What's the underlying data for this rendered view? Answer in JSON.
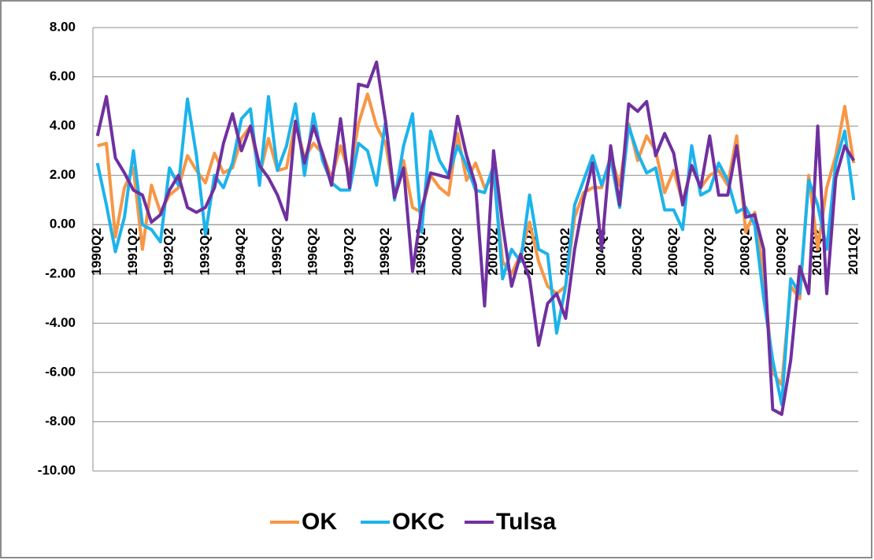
{
  "chart_data": {
    "type": "line",
    "categories": [
      "1990Q2",
      null,
      null,
      null,
      "1991Q2",
      null,
      null,
      null,
      "1992Q2",
      null,
      null,
      null,
      "1993Q2",
      null,
      null,
      null,
      "1994Q2",
      null,
      null,
      null,
      "1995Q2",
      null,
      null,
      null,
      "1996Q2",
      null,
      null,
      null,
      "1997Q2",
      null,
      null,
      null,
      "1998Q2",
      null,
      null,
      null,
      "1999Q2",
      null,
      null,
      null,
      "2000Q2",
      null,
      null,
      null,
      "2001Q2",
      null,
      null,
      null,
      "2002Q2",
      null,
      null,
      null,
      "2003Q2",
      null,
      null,
      null,
      "2004Q2",
      null,
      null,
      null,
      "2005Q2",
      null,
      null,
      null,
      "2006Q2",
      null,
      null,
      null,
      "2007Q2",
      null,
      null,
      null,
      "2008Q2",
      null,
      null,
      null,
      "2009Q2",
      null,
      null,
      null,
      "2010Q2",
      null,
      null,
      null,
      "2011Q2"
    ],
    "series": [
      {
        "name": "OK",
        "color": "#f79646",
        "values": [
          3.2,
          3.3,
          -0.5,
          1.5,
          2.3,
          -1.0,
          1.6,
          0.5,
          1.2,
          1.5,
          2.8,
          2.2,
          1.7,
          2.9,
          2.1,
          2.3,
          3.5,
          4.0,
          2.0,
          3.5,
          2.2,
          2.3,
          4.2,
          2.7,
          3.3,
          2.9,
          1.9,
          3.2,
          2.0,
          4.1,
          5.3,
          4.0,
          3.3,
          1.2,
          2.6,
          0.7,
          0.5,
          2.0,
          1.5,
          1.2,
          3.7,
          1.8,
          2.5,
          1.5,
          2.0,
          -1.5,
          -2.0,
          -1.2,
          0.1,
          -1.5,
          -2.5,
          -2.8,
          -2.5,
          0.3,
          1.3,
          1.5,
          1.5,
          2.8,
          1.6,
          4.1,
          2.6,
          3.6,
          3.0,
          1.3,
          2.2,
          0.9,
          2.4,
          1.5,
          2.0,
          2.2,
          1.6,
          3.6,
          -0.3,
          0.5,
          -2.0,
          -6.0,
          -6.5,
          -2.5,
          -3.0,
          2.0,
          -1.0,
          1.5,
          2.8,
          4.8,
          2.5
        ]
      },
      {
        "name": "OKC",
        "color": "#1cb3ec",
        "values": [
          2.5,
          0.8,
          -1.1,
          0.3,
          3.0,
          0.0,
          -0.2,
          -0.7,
          2.3,
          1.6,
          5.1,
          2.8,
          -0.4,
          2.0,
          1.5,
          2.5,
          4.3,
          4.7,
          1.6,
          5.2,
          2.2,
          3.2,
          4.9,
          2.0,
          4.5,
          2.6,
          1.7,
          1.4,
          1.4,
          3.3,
          3.0,
          1.6,
          4.2,
          1.0,
          3.2,
          4.5,
          -0.3,
          3.8,
          2.6,
          2.0,
          3.2,
          2.4,
          1.4,
          1.3,
          2.4,
          -2.2,
          -1.0,
          -1.5,
          1.2,
          -1.0,
          -1.2,
          -4.4,
          -2.5,
          0.8,
          1.8,
          2.8,
          1.6,
          2.7,
          0.7,
          4.0,
          2.9,
          2.1,
          2.3,
          0.6,
          0.6,
          -0.2,
          3.2,
          1.2,
          1.4,
          2.5,
          1.8,
          0.5,
          0.7,
          0.0,
          -3.0,
          -5.5,
          -7.3,
          -2.2,
          -2.8,
          1.8,
          0.8,
          -1.0,
          2.5,
          3.8,
          1.0
        ]
      },
      {
        "name": "Tulsa",
        "color": "#7030a0",
        "values": [
          3.6,
          5.2,
          2.7,
          2.1,
          1.4,
          1.2,
          0.1,
          0.4,
          1.4,
          2.0,
          0.7,
          0.5,
          0.7,
          1.5,
          3.3,
          4.5,
          3.0,
          4.0,
          2.4,
          1.9,
          1.2,
          0.2,
          4.2,
          2.5,
          4.0,
          2.9,
          1.6,
          4.3,
          1.5,
          5.7,
          5.6,
          6.6,
          4.2,
          1.1,
          2.3,
          -1.9,
          0.6,
          2.1,
          2.0,
          1.9,
          4.4,
          2.8,
          1.6,
          -3.3,
          3.0,
          0.0,
          -2.5,
          -1.2,
          -2.2,
          -4.9,
          -3.2,
          -2.8,
          -3.8,
          -1.0,
          1.0,
          2.5,
          -1.0,
          3.2,
          0.8,
          4.9,
          4.6,
          5.0,
          2.8,
          3.7,
          2.9,
          0.8,
          2.4,
          1.5,
          3.6,
          1.2,
          1.2,
          3.2,
          0.3,
          0.4,
          -1.0,
          -7.5,
          -7.7,
          -5.5,
          -1.7,
          -2.8,
          4.0,
          -2.8,
          1.9,
          3.2,
          2.6
        ]
      }
    ],
    "ylim": [
      -10,
      8
    ],
    "yticks": [
      {
        "value": -10,
        "label": "-10.00"
      },
      {
        "value": -8,
        "label": "-8.00"
      },
      {
        "value": -6,
        "label": "-6.00"
      },
      {
        "value": -4,
        "label": "-4.00"
      },
      {
        "value": -2,
        "label": "-2.00"
      },
      {
        "value": 0,
        "label": "0.00"
      },
      {
        "value": 2,
        "label": "2.00"
      },
      {
        "value": 4,
        "label": "4.00"
      },
      {
        "value": 6,
        "label": "6.00"
      },
      {
        "value": 8,
        "label": "8.00"
      }
    ],
    "grid": true,
    "legend": "bottom"
  }
}
